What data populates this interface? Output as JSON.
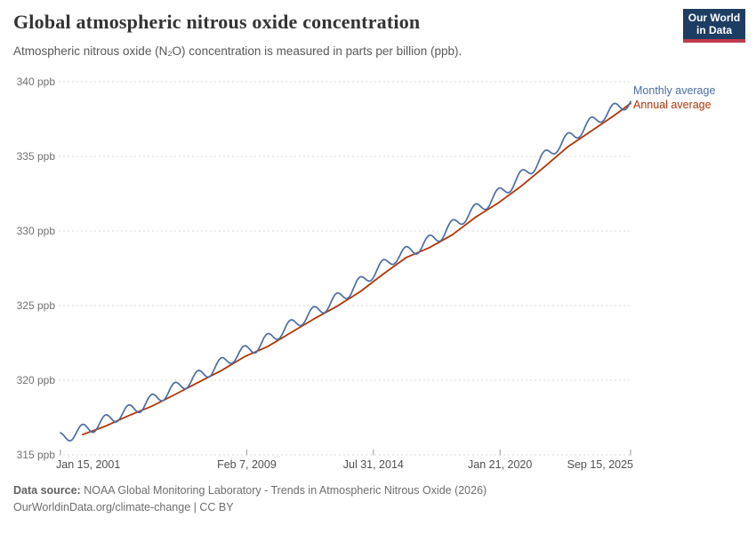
{
  "header": {
    "title": "Global atmospheric nitrous oxide concentration",
    "subtitle": "Atmospheric nitrous oxide (N₂O) concentration is measured in parts per billion (ppb).",
    "logo": {
      "line1": "Our World",
      "line2": "in Data",
      "bg_color": "#1d3d63",
      "accent_color": "#c03a4c"
    }
  },
  "chart_data": {
    "type": "line",
    "title": "Global atmospheric nitrous oxide concentration",
    "unit": "ppb",
    "xlim": [
      2001.04,
      2025.71
    ],
    "ylim": [
      315,
      340
    ],
    "grid": {
      "horizontal_dashed": true,
      "color": "#d8d8d8"
    },
    "legend_position": "right-of-line-ends",
    "y_ticks": [
      {
        "value": 315,
        "label": "315 ppb"
      },
      {
        "value": 320,
        "label": "320 ppb"
      },
      {
        "value": 325,
        "label": "325 ppb"
      },
      {
        "value": 330,
        "label": "330 ppb"
      },
      {
        "value": 335,
        "label": "335 ppb"
      },
      {
        "value": 340,
        "label": "340 ppb"
      }
    ],
    "x_ticks": [
      {
        "t": 2001.04,
        "label": "Jan 15, 2001",
        "align": "start"
      },
      {
        "t": 2009.1,
        "label": "Feb 7, 2009",
        "align": "middle"
      },
      {
        "t": 2014.58,
        "label": "Jul 31, 2014",
        "align": "middle"
      },
      {
        "t": 2020.06,
        "label": "Jan 21, 2020",
        "align": "middle"
      },
      {
        "t": 2025.71,
        "label": "Sep 15, 2025",
        "align": "end"
      }
    ],
    "legend": [
      {
        "label": "Monthly average",
        "color": "#4c6da3"
      },
      {
        "label": "Annual average",
        "color": "#b13507"
      }
    ],
    "annual_years": [
      2001,
      2002,
      2003,
      2004,
      2005,
      2006,
      2007,
      2008,
      2009,
      2010,
      2011,
      2012,
      2013,
      2014,
      2015,
      2016,
      2017,
      2018,
      2019,
      2020,
      2021,
      2022,
      2023,
      2024,
      2025
    ],
    "annual_values": [
      316.36,
      316.93,
      317.63,
      318.26,
      319.05,
      319.86,
      320.64,
      321.57,
      322.25,
      323.18,
      324.1,
      324.95,
      325.92,
      327.11,
      328.22,
      328.88,
      329.75,
      330.92,
      331.89,
      333.03,
      334.32,
      335.65,
      336.69,
      337.74,
      338.55
    ],
    "series": [
      {
        "name": "Monthly average",
        "color": "#4c6da3",
        "derivation": {
          "from": "annual_values",
          "trend_anchor": "mid_year",
          "seasonal_amplitude_ppb": 0.4,
          "seasonal_peak_phase": 0.98,
          "samples_per_year": 24
        }
      },
      {
        "name": "Annual average",
        "color": "#b13507",
        "derivation": {
          "from": "annual_values",
          "anchor": "year_end"
        }
      }
    ]
  },
  "footer": {
    "source_label": "Data source:",
    "source_text": "NOAA Global Monitoring Laboratory - Trends in Atmospheric Nitrous Oxide (2026)",
    "link_line": "OurWorldinData.org/climate-change | CC BY"
  }
}
